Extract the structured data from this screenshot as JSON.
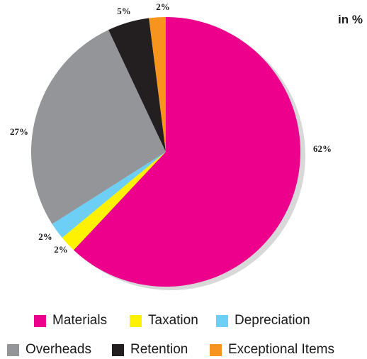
{
  "unit_label": "in %",
  "chart_data": {
    "type": "pie",
    "title": "",
    "unit": "in %",
    "slices": [
      {
        "label": "Materials",
        "value": 62,
        "display": "62%",
        "color": "#ec008c"
      },
      {
        "label": "Taxation",
        "value": 2,
        "display": "2%",
        "color": "#fff200"
      },
      {
        "label": "Depreciation",
        "value": 2,
        "display": "2%",
        "color": "#6dcff6"
      },
      {
        "label": "Overheads",
        "value": 27,
        "display": "27%",
        "color": "#939598"
      },
      {
        "label": "Retention",
        "value": 5,
        "display": "5%",
        "color": "#231f20"
      },
      {
        "label": "Exceptional Items",
        "value": 2,
        "display": "2%",
        "color": "#f7941d"
      }
    ],
    "legend": [
      "Materials",
      "Taxation",
      "Depreciation",
      "Overheads",
      "Retention",
      "Exceptional Items"
    ],
    "legend_position": "bottom"
  }
}
